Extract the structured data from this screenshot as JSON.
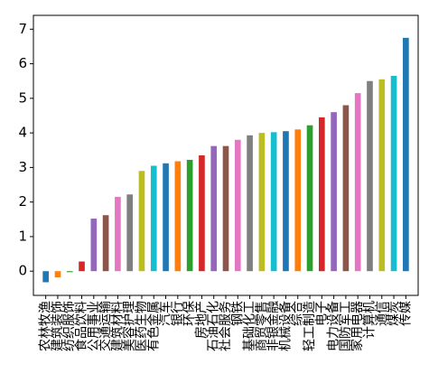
{
  "chart_data": {
    "type": "bar",
    "categories": [
      "农林牧渔",
      "建筑装饰",
      "纺织服饰",
      "食品饮料",
      "公用事业",
      "交通运输",
      "建筑材料",
      "美容护理",
      "医药生物",
      "有色金属",
      "汽车",
      "银行",
      "环保",
      "房地产",
      "石油石化",
      "社会服务",
      "钢铁",
      "基础化工",
      "商贸零售",
      "非银金融",
      "机械设备",
      "综合",
      "轻工制造",
      "电子",
      "电力设备",
      "国防军工",
      "家用电器",
      "计算机",
      "通信",
      "煤炭",
      "传媒"
    ],
    "values": [
      -0.32,
      -0.18,
      -0.03,
      0.28,
      1.52,
      1.62,
      2.15,
      2.22,
      2.9,
      3.05,
      3.12,
      3.18,
      3.22,
      3.35,
      3.62,
      3.62,
      3.8,
      3.93,
      4.0,
      4.02,
      4.05,
      4.1,
      4.22,
      4.45,
      4.6,
      4.8,
      5.15,
      5.5,
      5.55,
      5.65,
      6.75
    ],
    "colors": [
      "#1f77b4",
      "#ff7f0e",
      "#2ca02c",
      "#d62728",
      "#9467bd",
      "#8c564b",
      "#e377c2",
      "#7f7f7f",
      "#bcbd22",
      "#17becf"
    ],
    "ylim": [
      -0.7,
      7.4
    ],
    "yticks": [
      0,
      1,
      2,
      3,
      4,
      5,
      6,
      7
    ]
  }
}
